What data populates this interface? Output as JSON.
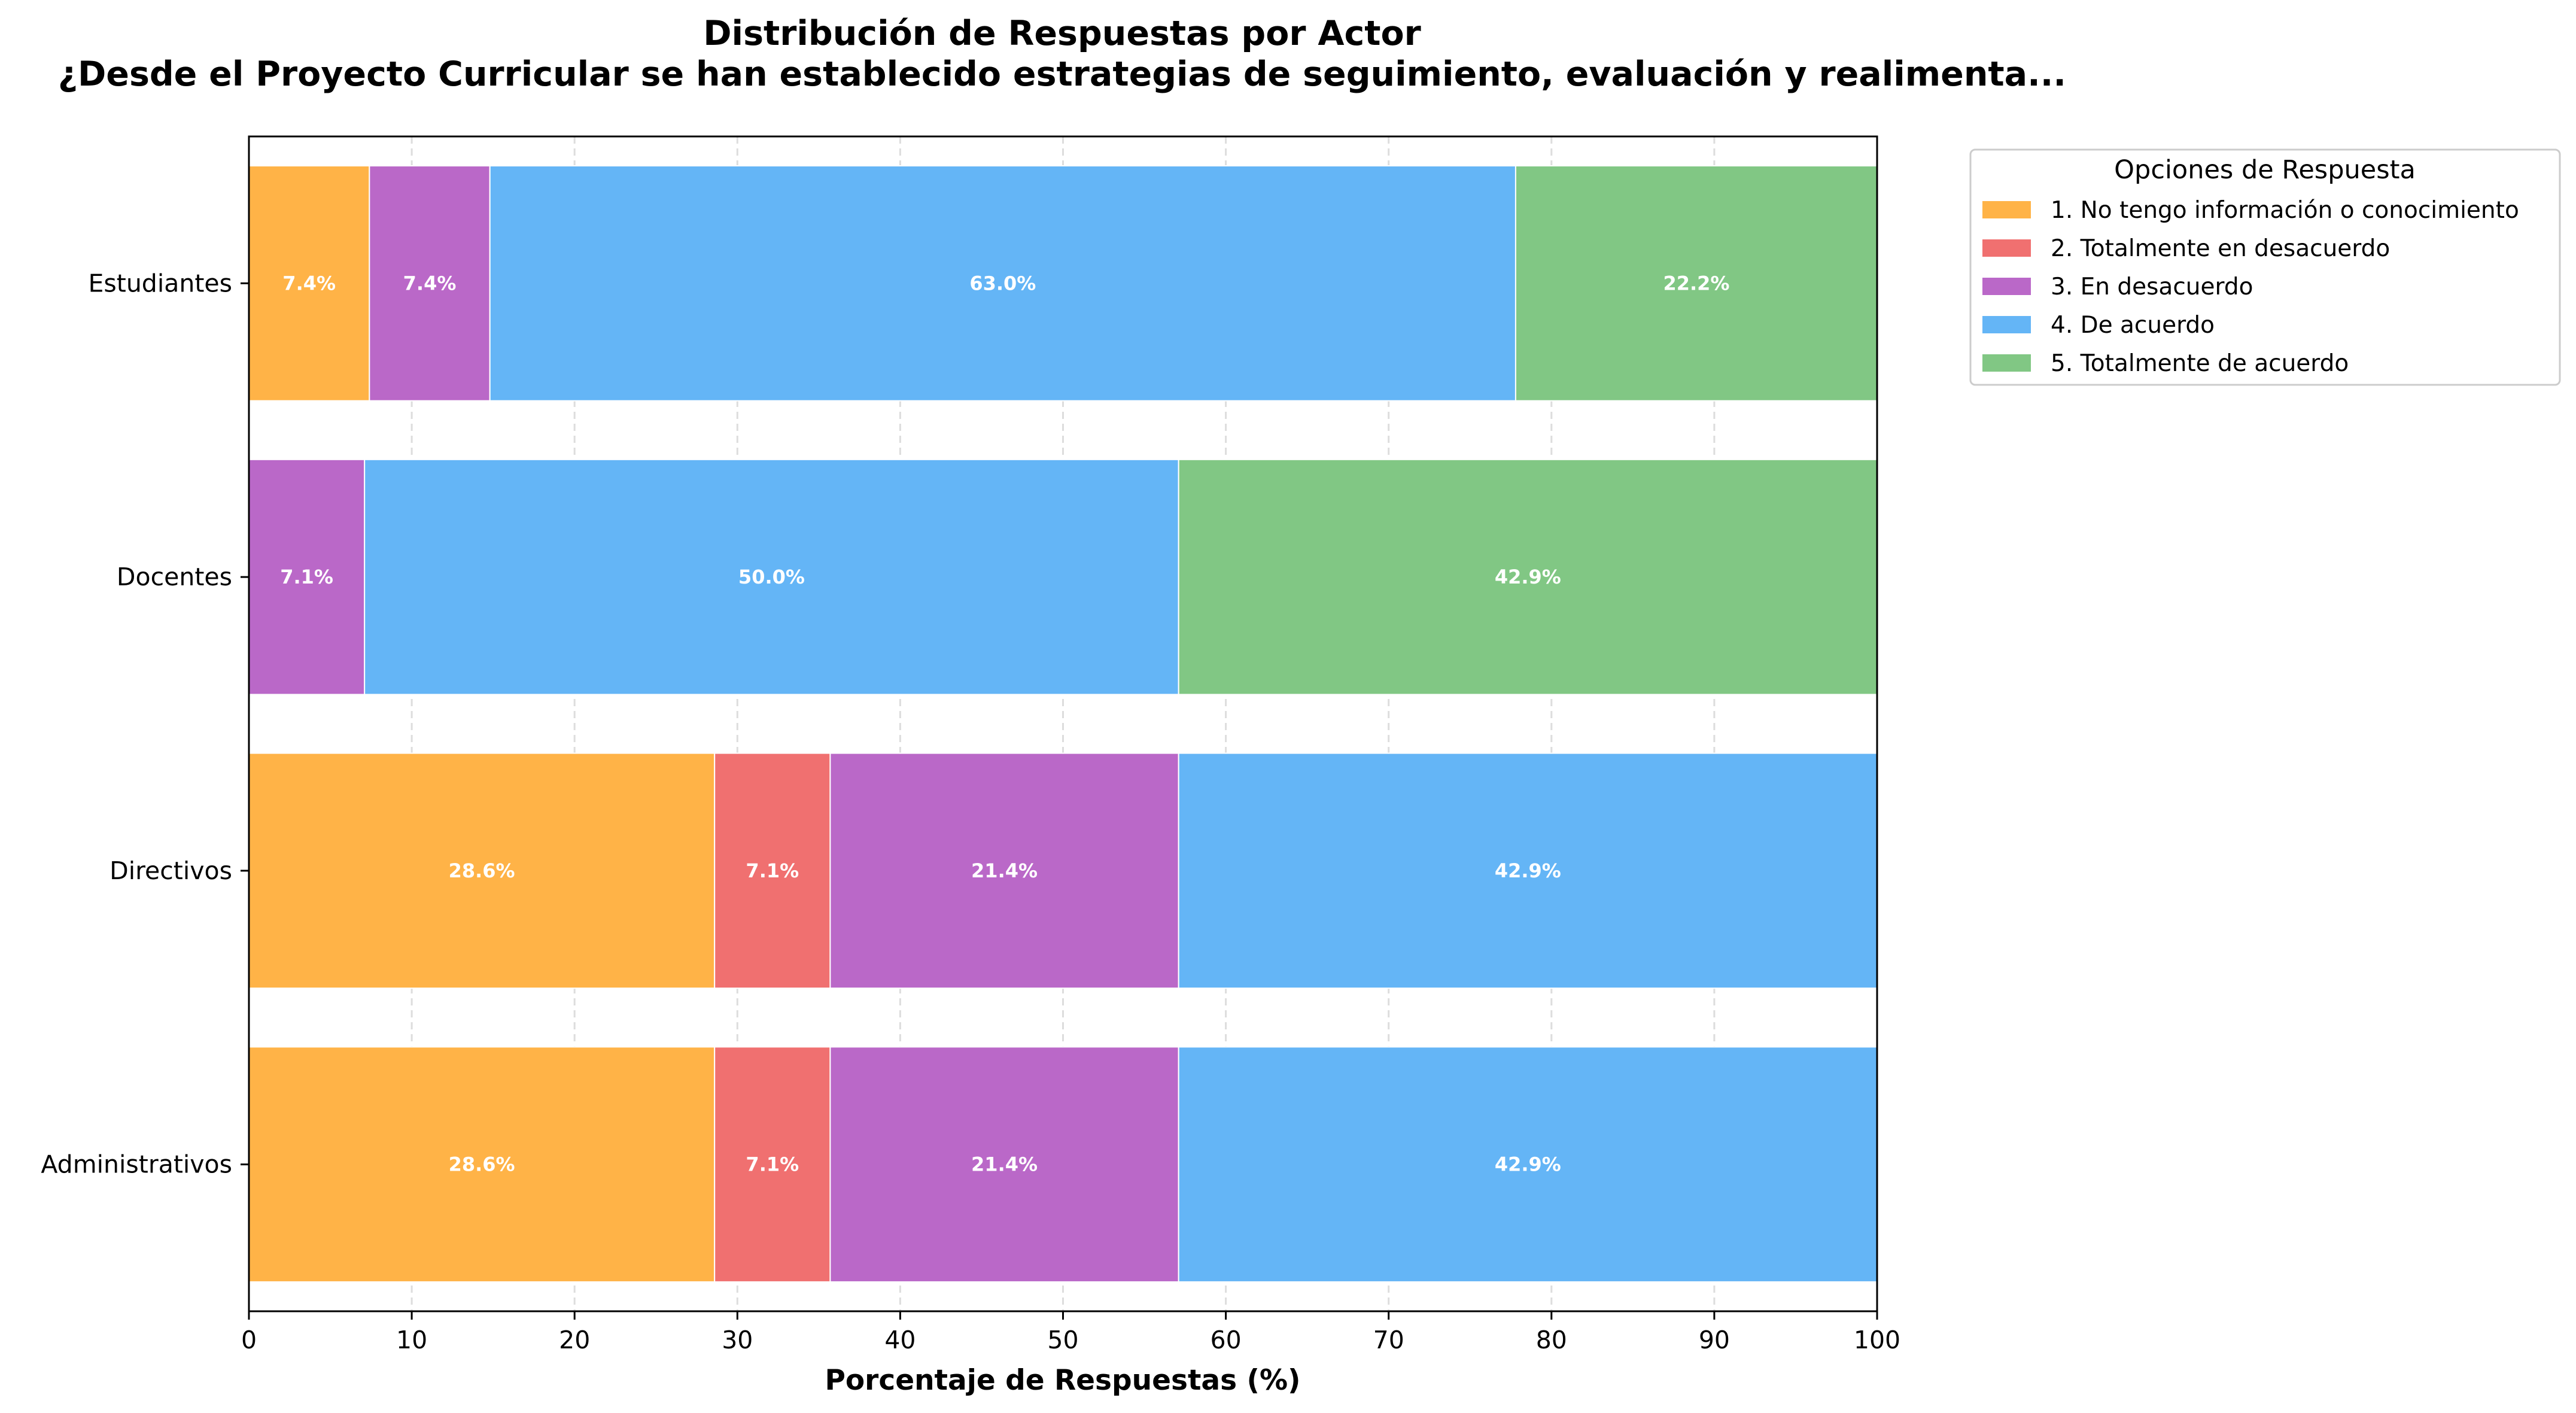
{
  "chart_data": {
    "type": "bar",
    "orientation": "horizontal",
    "stacked": true,
    "title": "Distribución de Respuestas por Actor",
    "subtitle": "¿Desde el Proyecto Curricular se han establecido estrategias de seguimiento, evaluación y realimenta...",
    "xlabel": "Porcentaje de Respuestas (%)",
    "ylabel": "",
    "xlim": [
      0,
      100
    ],
    "xticks": [
      0,
      10,
      20,
      30,
      40,
      50,
      60,
      70,
      80,
      90,
      100
    ],
    "grid": "x, dashed",
    "categories": [
      "Estudiantes",
      "Docentes",
      "Directivos",
      "Administrativos"
    ],
    "legend": {
      "title": "Opciones de Respuesta",
      "placement": "outside-top-right"
    },
    "series": [
      {
        "name": "1. No tengo información o conocimiento",
        "color": "#FFB347",
        "values": [
          7.4,
          0,
          28.6,
          28.6
        ]
      },
      {
        "name": "2. Totalmente en desacuerdo",
        "color": "#F07070",
        "values": [
          0,
          0,
          7.1,
          7.1
        ]
      },
      {
        "name": "3. En desacuerdo",
        "color": "#BA68C8",
        "values": [
          7.4,
          7.1,
          21.4,
          21.4
        ]
      },
      {
        "name": "4. De acuerdo",
        "color": "#64B5F6",
        "values": [
          63.0,
          50.0,
          42.9,
          42.9
        ]
      },
      {
        "name": "5. Totalmente de acuerdo",
        "color": "#81C784",
        "values": [
          22.2,
          42.9,
          0,
          0
        ]
      }
    ]
  }
}
